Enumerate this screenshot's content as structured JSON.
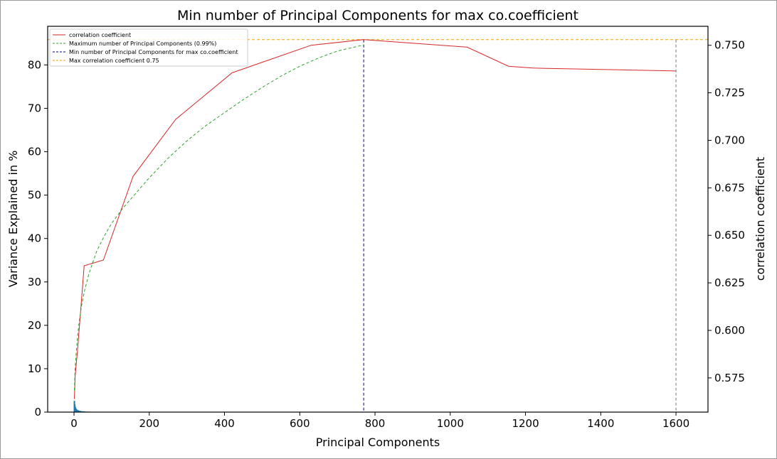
{
  "chart_data": {
    "type": "line",
    "title": "Min number of Principal Components for max co.coefficient",
    "xlabel": "Principal Components",
    "ylabel": "Variance Explained in %",
    "y2label": "correlation coefficient",
    "xlim": [
      -70,
      1685
    ],
    "ylim": [
      0,
      88.9
    ],
    "y2lim": [
      0.557,
      0.76
    ],
    "xticks": [
      0,
      200,
      400,
      600,
      800,
      1000,
      1200,
      1400,
      1600
    ],
    "yticks": [
      0,
      10,
      20,
      30,
      40,
      50,
      60,
      70,
      80
    ],
    "y2ticks": [
      0.575,
      0.6,
      0.625,
      0.65,
      0.675,
      0.7,
      0.725,
      0.75
    ],
    "y2tick_labels": [
      "0.575",
      "0.600",
      "0.625",
      "0.650",
      "0.675",
      "0.700",
      "0.725",
      "0.750"
    ],
    "grid": false,
    "legend_placement": "top-left",
    "series": [
      {
        "name": "correlation coefficient",
        "axis": "right",
        "color": "#d62728",
        "style": "solid",
        "x": [
          1,
          3,
          10,
          27,
          78,
          157,
          270,
          420,
          630,
          770,
          1045,
          1155,
          1220,
          1600
        ],
        "y": [
          0.564,
          0.576,
          0.591,
          0.634,
          0.637,
          0.681,
          0.711,
          0.7355,
          0.75,
          0.753,
          0.749,
          0.739,
          0.738,
          0.7365
        ]
      },
      {
        "name": "Maximum number of Principal Components (0.99%)",
        "axis": "left",
        "color": "#2ca02c",
        "style": "dashed",
        "x": [
          1,
          3,
          6,
          10,
          15,
          20,
          28,
          40,
          60,
          80,
          100,
          130,
          160,
          200,
          250,
          300,
          350,
          400,
          450,
          500,
          550,
          600,
          650,
          700,
          740,
          770
        ],
        "y": [
          5,
          10,
          14,
          18,
          21.5,
          24.5,
          28,
          32,
          37,
          40.5,
          43.5,
          47,
          50,
          54,
          58.5,
          62.5,
          66,
          69,
          72,
          74.8,
          77.4,
          79.7,
          81.6,
          83.2,
          84.0,
          84.6
        ]
      }
    ],
    "vertical_lines": [
      {
        "name": "Min number of Principal Components for max co.coefficient",
        "x": 770,
        "color": "#00008b",
        "style": "dashed"
      },
      {
        "x": 1600,
        "color": "#777777",
        "style": "dashed"
      }
    ],
    "horizontal_lines": [
      {
        "name": "Max correlation coefficient 0.75",
        "axis": "right",
        "y": 0.753,
        "color": "#ff9900",
        "style": "dashed"
      }
    ],
    "bars": {
      "axis": "left",
      "color": "#1f77b4",
      "x": [
        1,
        2,
        3,
        4,
        5,
        6,
        8,
        10,
        12,
        15,
        18,
        22,
        26,
        30,
        36,
        42,
        50,
        60,
        70
      ],
      "values": [
        2.6,
        1.8,
        1.3,
        1.0,
        0.8,
        0.7,
        0.55,
        0.45,
        0.38,
        0.3,
        0.25,
        0.2,
        0.17,
        0.14,
        0.12,
        0.1,
        0.08,
        0.06,
        0.05
      ]
    }
  }
}
